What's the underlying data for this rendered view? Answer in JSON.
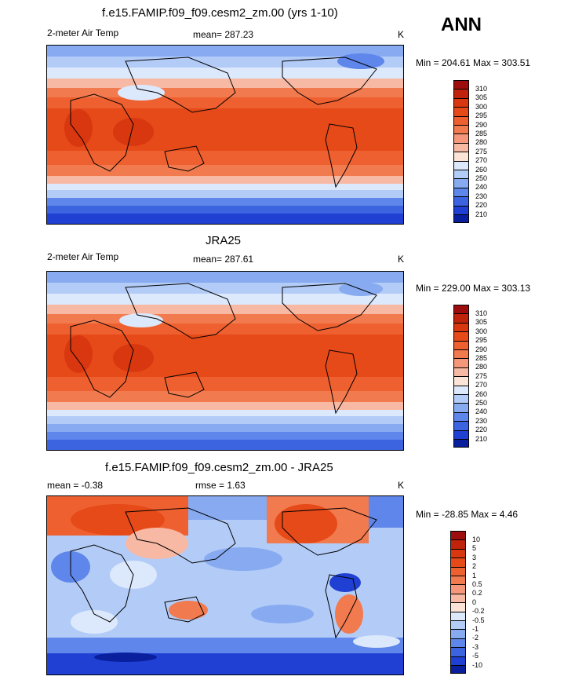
{
  "season": "ANN",
  "panels": [
    {
      "title": "f.e15.FAMIP.f09_f09.cesm2_zm.00 (yrs 1-10)",
      "left_label": "2-meter Air Temp",
      "center_label": "mean= 287.23",
      "units": "K",
      "minmax": "Min = 204.61 Max = 303.51"
    },
    {
      "title": "JRA25",
      "left_label": "2-meter Air Temp",
      "center_label": "mean= 287.61",
      "units": "K",
      "minmax": "Min = 229.00 Max = 303.13"
    },
    {
      "title": "f.e15.FAMIP.f09_f09.cesm2_zm.00 - JRA25",
      "left_label": "mean =  -0.38",
      "center_label": "rmse =   1.63",
      "units": "K",
      "minmax": "Min = -28.85 Max =   4.46"
    }
  ],
  "colorbars": {
    "temperature": {
      "levels": [
        "310",
        "305",
        "300",
        "295",
        "290",
        "285",
        "280",
        "275",
        "270",
        "260",
        "250",
        "240",
        "230",
        "220",
        "210"
      ],
      "colors": [
        "#9e0d0d",
        "#c0230b",
        "#d9370f",
        "#e64a19",
        "#ef6030",
        "#f27a4f",
        "#f5977a",
        "#f8b9a4",
        "#fbe3d6",
        "#dce8fb",
        "#b3ccf7",
        "#87aaf1",
        "#5f86ea",
        "#3c63e0",
        "#1f40d2",
        "#0a1f9e"
      ]
    },
    "difference": {
      "levels": [
        "10",
        "5",
        "3",
        "2",
        "1",
        "0.5",
        "0.2",
        "0",
        "-0.2",
        "-0.5",
        "-1",
        "-2",
        "-3",
        "-5",
        "-10"
      ],
      "colors": [
        "#9e0d0d",
        "#c0230b",
        "#d9370f",
        "#e64a19",
        "#ef6030",
        "#f27a4f",
        "#f5977a",
        "#f8b9a4",
        "#fbe3d6",
        "#dce8fb",
        "#b3ccf7",
        "#87aaf1",
        "#5f86ea",
        "#3c63e0",
        "#1f40d2",
        "#0a1f9e"
      ]
    }
  },
  "chart_data": [
    {
      "type": "heatmap",
      "title": "f.e15.FAMIP.f09_f09.cesm2_zm.00 (yrs 1-10)",
      "variable": "2-meter Air Temp",
      "units": "K",
      "mean": 287.23,
      "min": 204.61,
      "max": 303.51,
      "contour_levels": [
        210,
        220,
        230,
        240,
        250,
        260,
        270,
        275,
        280,
        285,
        290,
        295,
        300,
        305,
        310
      ]
    },
    {
      "type": "heatmap",
      "title": "JRA25",
      "variable": "2-meter Air Temp",
      "units": "K",
      "mean": 287.61,
      "min": 229.0,
      "max": 303.13,
      "contour_levels": [
        210,
        220,
        230,
        240,
        250,
        260,
        270,
        275,
        280,
        285,
        290,
        295,
        300,
        305,
        310
      ]
    },
    {
      "type": "heatmap",
      "title": "f.e15.FAMIP.f09_f09.cesm2_zm.00 - JRA25",
      "units": "K",
      "mean": -0.38,
      "rmse": 1.63,
      "min": -28.85,
      "max": 4.46,
      "contour_levels": [
        -10,
        -5,
        -3,
        -2,
        -1,
        -0.5,
        -0.2,
        0,
        0.2,
        0.5,
        1,
        2,
        3,
        5,
        10
      ]
    }
  ]
}
